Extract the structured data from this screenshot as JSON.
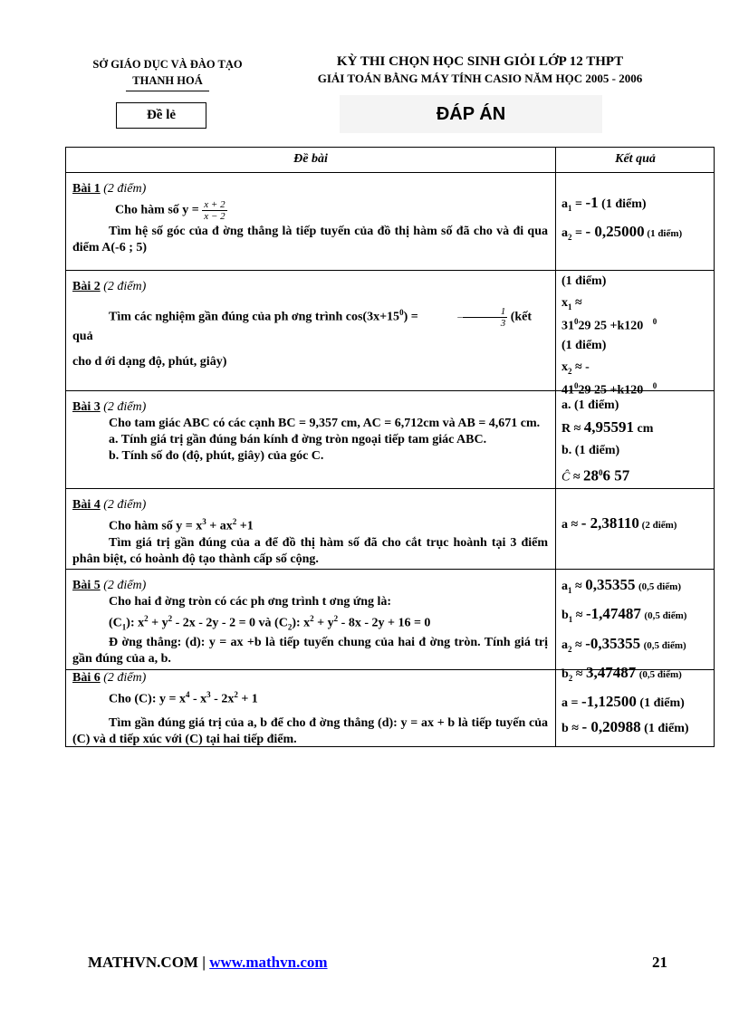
{
  "header": {
    "dept": "SỞ GIÁO DỤC VÀ ĐÀO TẠO",
    "province": "THANH HOÁ",
    "exam_title": "KỲ THI CHỌN HỌC SINH GIỎI LỚP 12 THPT",
    "exam_subtitle": "GIẢI TOÁN BẰNG MÁY TÍNH CASIO NĂM HỌC 2005 - 2006",
    "variant": "Đề lẻ",
    "answer_title": "ĐÁP ÁN"
  },
  "table": {
    "col1": "Đề bài",
    "col2": "Kết quả"
  },
  "b1": {
    "title": "Bài 1",
    "pts": "(2 điểm)",
    "l1": "Cho hàm số y = ",
    "num": "x + 2",
    "den": "x − 2",
    "l2": "Tìm hệ số góc của đ ờng thẳng là tiếp tuyến của đồ thị hàm số đã cho và đi qua điểm A(-6 ; 5)",
    "a1": "a",
    "s1": "1",
    "v1": " = ",
    "n1": "-1",
    "p1": " (1 điểm)",
    "a2": "a",
    "s2": "2",
    "v2": " = ",
    "n2": "- 0,25000",
    "p2": " (1 điểm)"
  },
  "b2": {
    "title": "Bài 2",
    "pts": "(2 điểm)",
    "l1a": "Tìm các nghiệm gần đúng của ph ơng trình cos(3x+15",
    "l1sup": "0",
    "l1b": ") = ",
    "num": "1",
    "den": "3",
    "l1c": " (kết quả",
    "l2": "cho d ới dạng độ, phút, giây)",
    "p1": "(1 điểm)",
    "x1": "x",
    "x1s": "1",
    "x1r": " ≈",
    "x1v": "31",
    "x1d": "0",
    "x1t": "29 25  +k120",
    "x1e": "0",
    "p2": "(1 điểm)",
    "x2": "x",
    "x2s": "2",
    "x2r": " ≈ -",
    "x2v": "41",
    "x2d": "0",
    "x2t": "29 25  +k120",
    "x2e": "0"
  },
  "b3": {
    "title": "Bài 3",
    "pts": "(2 điểm)",
    "l1": "Cho tam giác ABC có các cạnh BC = 9,357 cm, AC = 6,712cm và AB = 4,671 cm.",
    "l2": "a. Tính giá trị gần đúng bán kính đ ờng tròn ngoại tiếp tam giác ABC.",
    "l3": "b. Tính số đo (độ, phút, giây) của góc C.",
    "ra": "a. (1 điểm)",
    "R": "R ≈ ",
    "Rv": "4,95591",
    "Ru": " cm",
    "rb": "b. (1 điểm)",
    "C": "Ĉ",
    "Cr": " ≈ ",
    "Cv": "28",
    "Cd": "0",
    "Ct": "6 57"
  },
  "b4": {
    "title": "Bài 4",
    "pts": "(2 điểm)",
    "l1a": "Cho hàm số y = x",
    "s1": "3",
    "l1b": " + ax",
    "s2": "2",
    "l1c": " +1",
    "l2": "Tìm giá trị gần đúng của a để đồ thị hàm số đã cho cắt trục hoành tại 3 điểm phân biệt, có hoành độ tạo thành cấp số cộng.",
    "r": "a ≈ ",
    "rv": "- 2,38110",
    "rp": " (2 điểm)"
  },
  "b5": {
    "title": "Bài 5",
    "pts": "(2 điểm)",
    "l1": "Cho hai  đ ờng tròn có các ph ơng trình t ơng ứng là:",
    "l2": [
      "(C",
      "1",
      "): x",
      "2",
      "+ y",
      "2",
      " - 2x - 2y - 2 = 0  và (C",
      "2",
      "): x",
      "2",
      " + y",
      "2",
      " - 8x - 2y + 16 = 0"
    ],
    "l3": "Đ ờng thẳng: (d): y = ax +b là tiếp tuyến chung của hai  đ ờng tròn. Tính giá trị gần đúng của a, b.",
    "r": [
      {
        "v": "a",
        "s": "1",
        "val": "0,35355",
        "p": "(0,5 điểm)"
      },
      {
        "v": "b",
        "s": "1",
        "val": "-1,47487",
        "p": "(0,5 điểm)"
      },
      {
        "v": "a",
        "s": "2",
        "val": "-0,35355",
        "p": "(0,5 điểm)"
      },
      {
        "v": "b",
        "s": "2",
        "val": "3,47487",
        "p": "(0,5 điểm)"
      }
    ],
    "approx": " ≈ "
  },
  "b6": {
    "title": "Bài 6",
    "pts": "(2 điểm)",
    "l1a": "Cho (C): y = x",
    "s1": "4",
    "l1b": " - x",
    "s2": "3",
    "l1c": " - 2x",
    "s3": "2",
    "l1d": " + 1",
    "l2": "Tìm gần đúng giá trị của a, b để cho đ ờng thẳng (d): y = ax + b là tiếp tuyến của (C) và d tiếp xúc với (C) tại hai tiếp điểm.",
    "ra": "a = ",
    "rav": "-1,12500",
    "rap": " (1 điểm)",
    "rb": "b ≈ ",
    "rbv": "- 0,20988",
    "rbp": " (1 điểm)"
  },
  "footer": {
    "site": "MATHVN.COM | ",
    "link": "www.mathvn.com",
    "page": "21"
  }
}
